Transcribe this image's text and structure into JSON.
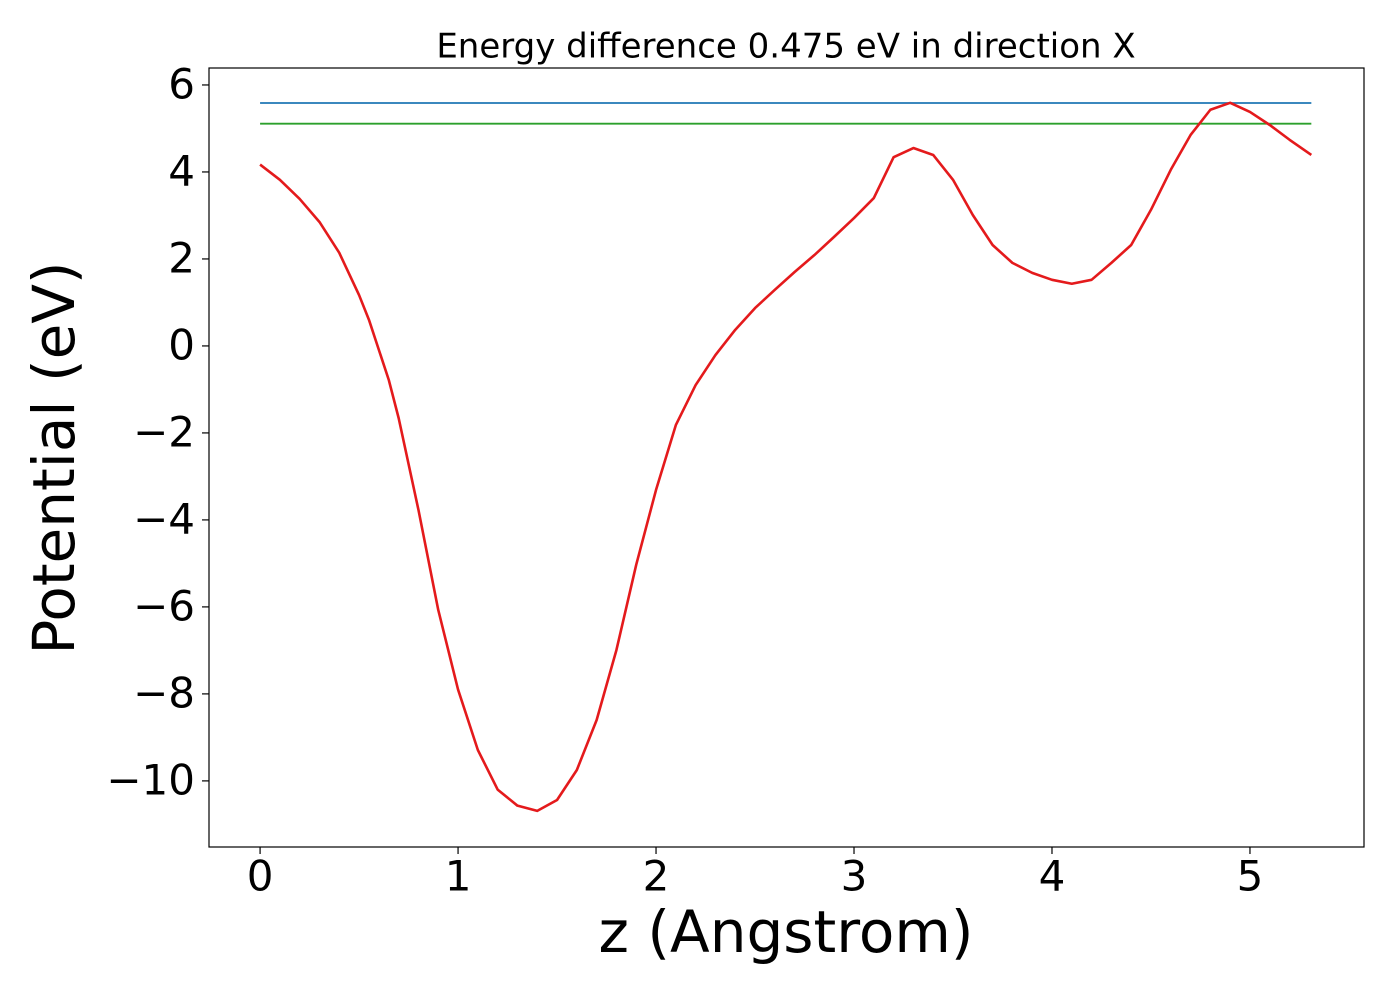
{
  "chart_data": {
    "type": "line",
    "title": "Energy difference 0.475 eV in direction X",
    "x_label": "z (Angstrom)",
    "y_label": "Potential (eV)",
    "xlim": [
      -0.258,
      5.576
    ],
    "ylim": [
      -11.52,
      6.39
    ],
    "xticks": [
      0,
      1,
      2,
      3,
      4,
      5
    ],
    "yticks": [
      {
        "value": -10,
        "label": "−10"
      },
      {
        "value": -8,
        "label": "−8"
      },
      {
        "value": -6,
        "label": "−6"
      },
      {
        "value": -4,
        "label": "−4"
      },
      {
        "value": -2,
        "label": "−2"
      },
      0,
      2,
      4,
      6
    ],
    "grid": false,
    "series": [
      {
        "color": "#1f77b4",
        "x": [
          0,
          5.31
        ],
        "values": [
          5.585,
          5.585
        ]
      },
      {
        "color": "#2ca02c",
        "x": [
          0,
          5.31
        ],
        "values": [
          5.11,
          5.11
        ]
      },
      {
        "color": "#e41a1c",
        "x": [
          0,
          0.1,
          0.2,
          0.3,
          0.4,
          0.5,
          0.55,
          0.6,
          0.65,
          0.7,
          0.8,
          0.9,
          1.0,
          1.1,
          1.2,
          1.3,
          1.4,
          1.5,
          1.6,
          1.7,
          1.8,
          1.9,
          2.0,
          2.1,
          2.2,
          2.3,
          2.4,
          2.5,
          2.6,
          2.7,
          2.8,
          2.9,
          3.0,
          3.1,
          3.2,
          3.3,
          3.4,
          3.5,
          3.6,
          3.7,
          3.8,
          3.9,
          4.0,
          4.1,
          4.2,
          4.3,
          4.4,
          4.5,
          4.6,
          4.7,
          4.8,
          4.9,
          5.0,
          5.1,
          5.2,
          5.31
        ],
        "values": [
          4.17,
          3.82,
          3.38,
          2.85,
          2.14,
          1.17,
          0.6,
          -0.09,
          -0.78,
          -1.66,
          -3.77,
          -6.07,
          -7.9,
          -9.29,
          -10.2,
          -10.57,
          -10.69,
          -10.44,
          -9.75,
          -8.6,
          -6.99,
          -5.03,
          -3.31,
          -1.82,
          -0.9,
          -0.21,
          0.37,
          0.87,
          1.29,
          1.7,
          2.09,
          2.51,
          2.94,
          3.4,
          4.34,
          4.55,
          4.39,
          3.82,
          3.01,
          2.32,
          1.91,
          1.68,
          1.52,
          1.43,
          1.52,
          1.91,
          2.32,
          3.13,
          4.05,
          4.85,
          5.43,
          5.59,
          5.38,
          5.08,
          4.74,
          4.39
        ]
      }
    ]
  }
}
